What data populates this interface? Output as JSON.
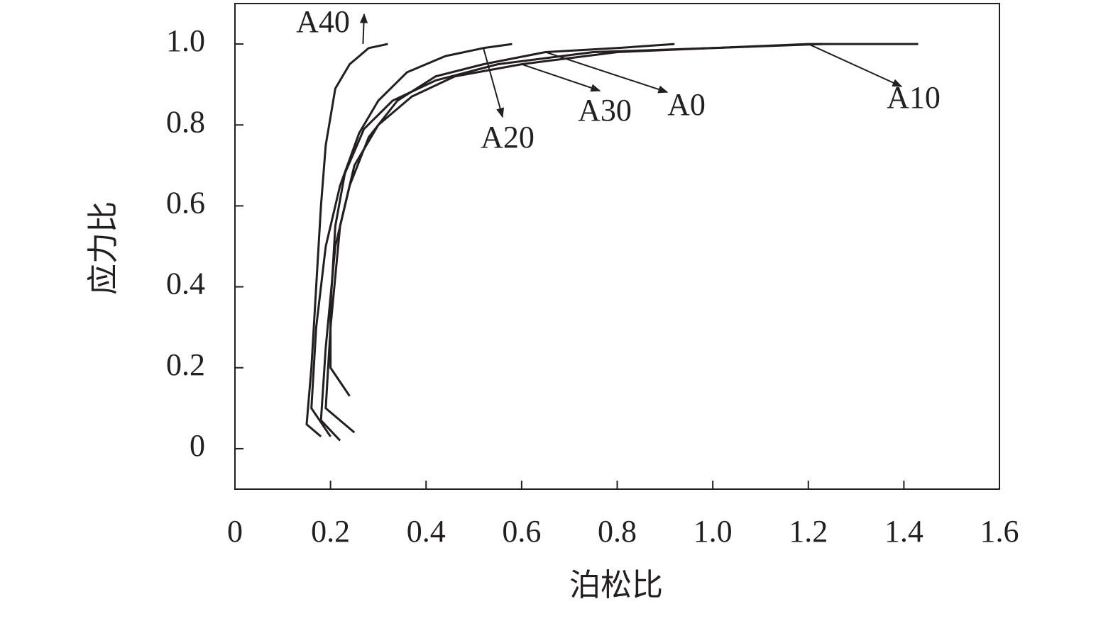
{
  "chart_data": {
    "type": "line",
    "x_label": "泊松比",
    "y_label": "应力比",
    "xlim": [
      0,
      1.6
    ],
    "ylim": [
      -0.1,
      1.1
    ],
    "xticks": [
      0,
      0.2,
      0.4,
      0.6,
      0.8,
      {
        "value": 1,
        "label": "1.0"
      },
      1.2,
      1.4,
      1.6
    ],
    "yticks": [
      0,
      0.2,
      0.4,
      0.6,
      0.8,
      {
        "value": 1,
        "label": "1.0"
      }
    ],
    "series": [
      {
        "name": "A40",
        "color": "#231f20",
        "x": [
          0.18,
          0.15,
          0.16,
          0.17,
          0.18,
          0.19,
          0.2,
          0.21,
          0.24,
          0.28,
          0.32
        ],
        "values": [
          0.03,
          0.06,
          0.2,
          0.4,
          0.6,
          0.75,
          0.82,
          0.89,
          0.95,
          0.99,
          1.0
        ]
      },
      {
        "name": "A20",
        "color": "#231f20",
        "x": [
          0.2,
          0.16,
          0.17,
          0.19,
          0.22,
          0.26,
          0.3,
          0.36,
          0.44,
          0.52,
          0.58
        ],
        "values": [
          0.03,
          0.1,
          0.3,
          0.5,
          0.65,
          0.78,
          0.86,
          0.93,
          0.97,
          0.99,
          1.0
        ]
      },
      {
        "name": "A30",
        "color": "#231f20",
        "x": [
          0.25,
          0.19,
          0.2,
          0.22,
          0.25,
          0.3,
          0.37,
          0.46,
          0.6,
          0.8,
          1.0,
          1.23
        ],
        "values": [
          0.04,
          0.1,
          0.3,
          0.55,
          0.7,
          0.8,
          0.87,
          0.92,
          0.95,
          0.98,
          0.99,
          1.0
        ]
      },
      {
        "name": "A0",
        "color": "#231f20",
        "x": [
          0.22,
          0.18,
          0.19,
          0.21,
          0.24,
          0.28,
          0.34,
          0.42,
          0.52,
          0.65,
          0.8,
          0.92
        ],
        "values": [
          0.02,
          0.07,
          0.25,
          0.5,
          0.65,
          0.77,
          0.86,
          0.92,
          0.95,
          0.98,
          0.99,
          1.0
        ]
      },
      {
        "name": "A10",
        "color": "#231f20",
        "x": [
          0.24,
          0.2,
          0.2,
          0.21,
          0.23,
          0.27,
          0.33,
          0.42,
          0.55,
          0.75,
          1.0,
          1.2,
          1.43
        ],
        "values": [
          0.13,
          0.2,
          0.35,
          0.55,
          0.68,
          0.79,
          0.86,
          0.91,
          0.95,
          0.98,
          0.99,
          1.0,
          1.0
        ]
      }
    ]
  }
}
